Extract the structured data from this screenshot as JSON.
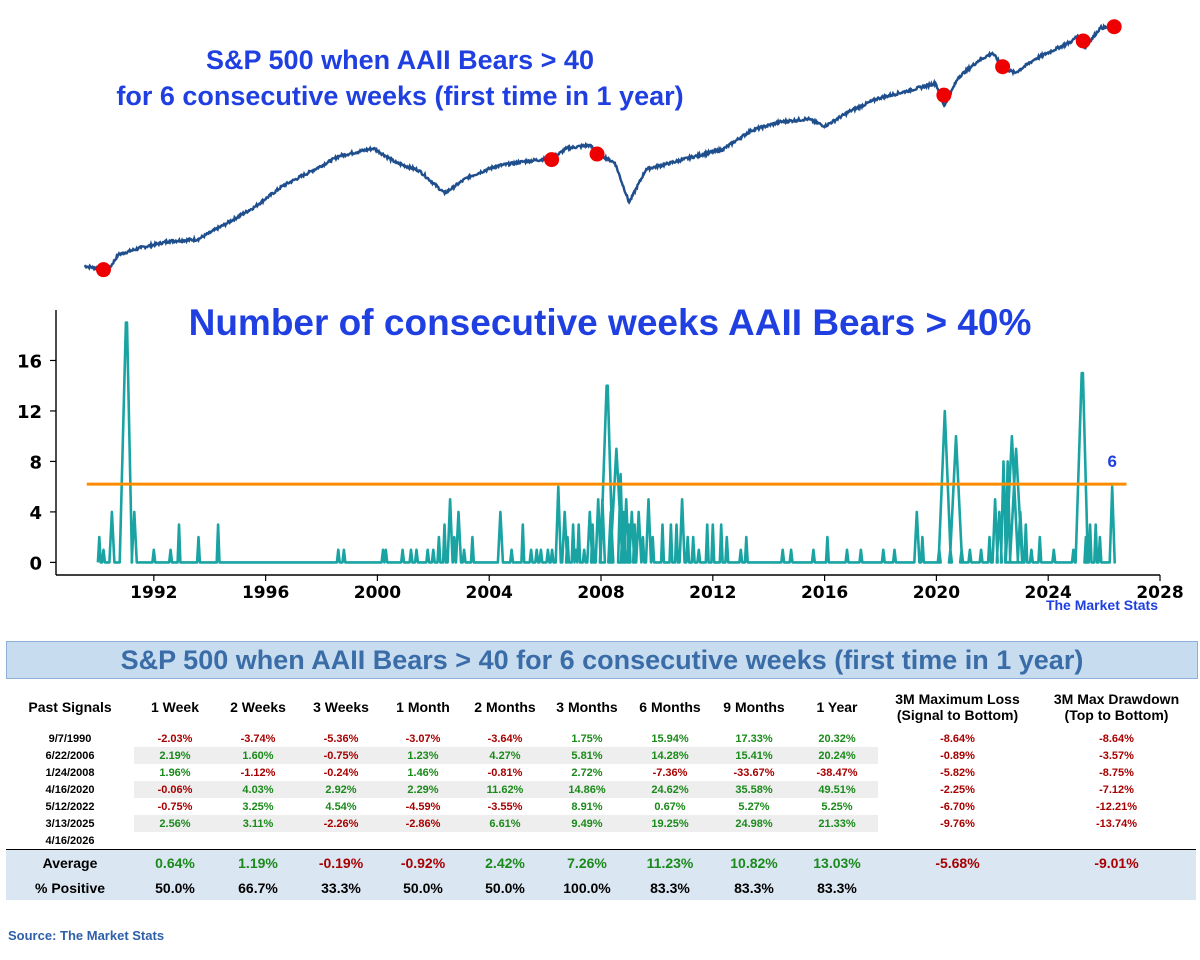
{
  "chart_data": [
    {
      "type": "line",
      "title": "S&P 500 when AAII Bears > 40\nfor 6 consecutive weeks (first time in 1 year)",
      "title_lines": [
        "S&P 500 when AAII Bears > 40",
        "for 6 consecutive weeks (first time in 1 year)"
      ],
      "series": [
        {
          "x": [
            1990.0,
            1990.5,
            1990.8,
            1991.2,
            1992.0,
            1993.0,
            1994.0,
            1995.0,
            1996.0,
            1997.0,
            1998.0,
            1999.0,
            2000.2,
            2001.0,
            2001.8,
            2002.7,
            2003.5,
            2004.5,
            2005.5,
            2006.5,
            2007.0,
            2007.8,
            2008.2,
            2008.7,
            2009.2,
            2009.8,
            2010.5,
            2011.5,
            2012.5,
            2013.5,
            2014.5,
            2015.5,
            2016.1,
            2017.0,
            2018.0,
            2019.0,
            2020.0,
            2020.3,
            2020.8,
            2021.5,
            2022.0,
            2022.4,
            2022.8,
            2023.5,
            2024.0,
            2024.8,
            2025.0,
            2025.25,
            2025.8,
            2026.3
          ],
          "values": [
            330,
            320,
            305,
            380,
            415,
            450,
            460,
            560,
            690,
            900,
            1080,
            1310,
            1440,
            1200,
            1090,
            820,
            1000,
            1150,
            1220,
            1270,
            1440,
            1500,
            1320,
            1200,
            730,
            1110,
            1180,
            1300,
            1420,
            1800,
            2000,
            2080,
            1900,
            2300,
            2700,
            2950,
            3250,
            2450,
            3500,
            4300,
            4750,
            3930,
            3700,
            4400,
            4800,
            5500,
            5900,
            5050,
            6500,
            6600
          ]
        }
      ],
      "signals": [
        {
          "date": "9/7/1990",
          "x": 1990.68,
          "y": 315
        },
        {
          "date": "6/22/2006",
          "x": 2006.47,
          "y": 1250
        },
        {
          "date": "1/24/2008",
          "x": 2008.07,
          "y": 1340
        },
        {
          "date": "4/16/2020",
          "x": 2020.29,
          "y": 2800
        },
        {
          "date": "5/12/2022",
          "x": 2022.36,
          "y": 4000
        },
        {
          "date": "3/13/2025",
          "x": 2025.2,
          "y": 5520
        },
        {
          "date": "4/16/2026",
          "x": 2026.29,
          "y": 6600
        }
      ],
      "y_scale": "log",
      "ylim": [
        260,
        7000
      ],
      "xlim": [
        1989.5,
        2027.2
      ],
      "grid": false,
      "colors": {
        "line": "#1f4e8c",
        "signal": "#ee0000"
      }
    },
    {
      "type": "line",
      "title": "Number of consecutive weeks AAII Bears > 40%",
      "xlim": [
        1988.5,
        2028
      ],
      "ylim": [
        -1,
        20
      ],
      "x_ticks": [
        "1992",
        "1996",
        "2000",
        "2004",
        "2008",
        "2012",
        "2016",
        "2020",
        "2024",
        "2028"
      ],
      "y_ticks": [
        "0",
        "4",
        "8",
        "12",
        "16"
      ],
      "threshold": 6.2,
      "annotation": "6",
      "grid": false,
      "colors": {
        "line": "#1aa3a3",
        "threshold": "#ff8c00",
        "annotation": "#1f3fe0"
      },
      "spikes": [
        [
          1990.05,
          2
        ],
        [
          1990.2,
          1
        ],
        [
          1990.5,
          4
        ],
        [
          1991.0,
          19
        ],
        [
          1991.3,
          4
        ],
        [
          1992.0,
          1
        ],
        [
          1992.6,
          1
        ],
        [
          1992.9,
          3
        ],
        [
          1993.6,
          2
        ],
        [
          1994.3,
          3
        ],
        [
          1998.6,
          1
        ],
        [
          1998.8,
          1
        ],
        [
          2000.2,
          1
        ],
        [
          2000.3,
          1
        ],
        [
          2000.9,
          1
        ],
        [
          2001.2,
          1
        ],
        [
          2001.4,
          1
        ],
        [
          2001.8,
          1
        ],
        [
          2002.0,
          1
        ],
        [
          2002.2,
          2
        ],
        [
          2002.4,
          3
        ],
        [
          2002.6,
          5
        ],
        [
          2002.75,
          2
        ],
        [
          2002.9,
          4
        ],
        [
          2003.1,
          1
        ],
        [
          2003.4,
          2
        ],
        [
          2004.4,
          4
        ],
        [
          2004.8,
          1
        ],
        [
          2005.2,
          3
        ],
        [
          2005.5,
          1
        ],
        [
          2005.7,
          1
        ],
        [
          2005.85,
          1
        ],
        [
          2006.1,
          1
        ],
        [
          2006.25,
          1
        ],
        [
          2006.47,
          6
        ],
        [
          2006.7,
          4
        ],
        [
          2006.8,
          2
        ],
        [
          2007.0,
          3
        ],
        [
          2007.1,
          1
        ],
        [
          2007.2,
          3
        ],
        [
          2007.4,
          1
        ],
        [
          2007.6,
          4
        ],
        [
          2007.7,
          3
        ],
        [
          2007.9,
          5
        ],
        [
          2008.05,
          5
        ],
        [
          2008.2,
          14
        ],
        [
          2008.35,
          4
        ],
        [
          2008.55,
          9
        ],
        [
          2008.7,
          7
        ],
        [
          2008.8,
          4
        ],
        [
          2008.9,
          5
        ],
        [
          2009.0,
          3
        ],
        [
          2009.1,
          4
        ],
        [
          2009.2,
          3
        ],
        [
          2009.35,
          4
        ],
        [
          2009.5,
          2
        ],
        [
          2009.7,
          5
        ],
        [
          2009.85,
          2
        ],
        [
          2010.2,
          3
        ],
        [
          2010.5,
          3
        ],
        [
          2010.7,
          3
        ],
        [
          2010.9,
          5
        ],
        [
          2011.1,
          2
        ],
        [
          2011.3,
          2
        ],
        [
          2011.5,
          1
        ],
        [
          2011.8,
          3
        ],
        [
          2012.0,
          3
        ],
        [
          2012.3,
          3
        ],
        [
          2012.5,
          2
        ],
        [
          2013.0,
          1
        ],
        [
          2013.2,
          2
        ],
        [
          2014.5,
          1
        ],
        [
          2014.8,
          1
        ],
        [
          2015.6,
          1
        ],
        [
          2016.1,
          2
        ],
        [
          2016.8,
          1
        ],
        [
          2017.3,
          1
        ],
        [
          2018.1,
          1
        ],
        [
          2018.5,
          1
        ],
        [
          2019.3,
          4
        ],
        [
          2019.5,
          2
        ],
        [
          2020.1,
          1
        ],
        [
          2020.3,
          12
        ],
        [
          2020.5,
          1
        ],
        [
          2020.7,
          10
        ],
        [
          2020.9,
          1
        ],
        [
          2021.2,
          1
        ],
        [
          2021.6,
          1
        ],
        [
          2021.9,
          2
        ],
        [
          2022.1,
          5
        ],
        [
          2022.25,
          4
        ],
        [
          2022.4,
          8
        ],
        [
          2022.55,
          8
        ],
        [
          2022.7,
          10
        ],
        [
          2022.85,
          9
        ],
        [
          2023.0,
          4
        ],
        [
          2023.2,
          3
        ],
        [
          2023.4,
          1
        ],
        [
          2023.7,
          2
        ],
        [
          2024.2,
          1
        ],
        [
          2024.9,
          1
        ],
        [
          2025.2,
          15
        ],
        [
          2025.35,
          2
        ],
        [
          2025.5,
          3
        ],
        [
          2025.7,
          3
        ],
        [
          2025.85,
          2
        ],
        [
          2026.29,
          6
        ]
      ]
    }
  ],
  "watermark": "The Market Stats",
  "table": {
    "title": "S&P 500 when AAII Bears > 40 for 6 consecutive weeks (first time in 1 year)",
    "headers": [
      "Past Signals",
      "1 Week",
      "2 Weeks",
      "3 Weeks",
      "1 Month",
      "2 Months",
      "3 Months",
      "6 Months",
      "9 Months",
      "1 Year",
      "3M Maximum Loss",
      "3M Max Drawdown"
    ],
    "header_subs": [
      "",
      "",
      "",
      "",
      "",
      "",
      "",
      "",
      "",
      "",
      "(Signal to Bottom)",
      "(Top to Bottom)"
    ],
    "rows": [
      [
        "9/7/1990",
        "-2.03%",
        "-3.74%",
        "-5.36%",
        "-3.07%",
        "-3.64%",
        "1.75%",
        "15.94%",
        "17.33%",
        "20.32%",
        "-8.64%",
        "-8.64%"
      ],
      [
        "6/22/2006",
        "2.19%",
        "1.60%",
        "-0.75%",
        "1.23%",
        "4.27%",
        "5.81%",
        "14.28%",
        "15.41%",
        "20.24%",
        "-0.89%",
        "-3.57%"
      ],
      [
        "1/24/2008",
        "1.96%",
        "-1.12%",
        "-0.24%",
        "1.46%",
        "-0.81%",
        "2.72%",
        "-7.36%",
        "-33.67%",
        "-38.47%",
        "-5.82%",
        "-8.75%"
      ],
      [
        "4/16/2020",
        "-0.06%",
        "4.03%",
        "2.92%",
        "2.29%",
        "11.62%",
        "14.86%",
        "24.62%",
        "35.58%",
        "49.51%",
        "-2.25%",
        "-7.12%"
      ],
      [
        "5/12/2022",
        "-0.75%",
        "3.25%",
        "4.54%",
        "-4.59%",
        "-3.55%",
        "8.91%",
        "0.67%",
        "5.27%",
        "5.25%",
        "-6.70%",
        "-12.21%"
      ],
      [
        "3/13/2025",
        "2.56%",
        "3.11%",
        "-2.26%",
        "-2.86%",
        "6.61%",
        "9.49%",
        "19.25%",
        "24.98%",
        "21.33%",
        "-9.76%",
        "-13.74%"
      ],
      [
        "4/16/2026",
        "",
        "",
        "",
        "",
        "",
        "",
        "",
        "",
        "",
        "",
        ""
      ]
    ],
    "average": [
      "Average",
      "0.64%",
      "1.19%",
      "-0.19%",
      "-0.92%",
      "2.42%",
      "7.26%",
      "11.23%",
      "10.82%",
      "13.03%",
      "-5.68%",
      "-9.01%"
    ],
    "positive": [
      "% Positive",
      "50.0%",
      "66.7%",
      "33.3%",
      "50.0%",
      "50.0%",
      "100.0%",
      "83.3%",
      "83.3%",
      "83.3%",
      "",
      ""
    ]
  },
  "source": "Source: The Market Stats"
}
